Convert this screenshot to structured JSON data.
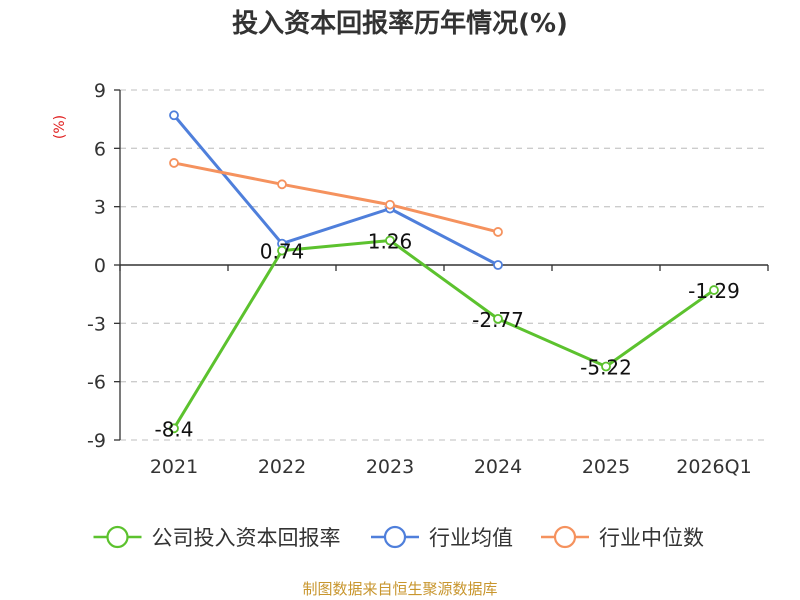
{
  "chart_data": {
    "type": "line",
    "title": "投入资本回报率历年情况(%)",
    "ylabel": "(%)",
    "ylim": [
      -9,
      9
    ],
    "yticks": [
      9,
      6,
      3,
      0,
      -3,
      -6,
      -9
    ],
    "categories": [
      "2021",
      "2022",
      "2023",
      "2024",
      "2025",
      "2026Q1"
    ],
    "grid": true,
    "legend_position": "bottom",
    "series": [
      {
        "name": "公司投入资本回报率",
        "color": "#5cc22e",
        "values": [
          -8.4,
          0.74,
          1.26,
          -2.77,
          -5.22,
          -1.29
        ],
        "labels": [
          "-8.4",
          "0.74",
          "1.26",
          "-2.77",
          "-5.22",
          "-1.29"
        ]
      },
      {
        "name": "行业均值",
        "color": "#4f7fdb",
        "values": [
          7.7,
          1.1,
          2.9,
          0.0,
          null,
          null
        ]
      },
      {
        "name": "行业中位数",
        "color": "#f5925e",
        "values": [
          5.25,
          4.15,
          3.1,
          1.7,
          null,
          null
        ]
      }
    ],
    "source": "制图数据来自恒生聚源数据库",
    "colors": {
      "axis": "#333333",
      "grid": "#cccccc",
      "unit": "#e02020",
      "source": "#c8962e"
    }
  }
}
